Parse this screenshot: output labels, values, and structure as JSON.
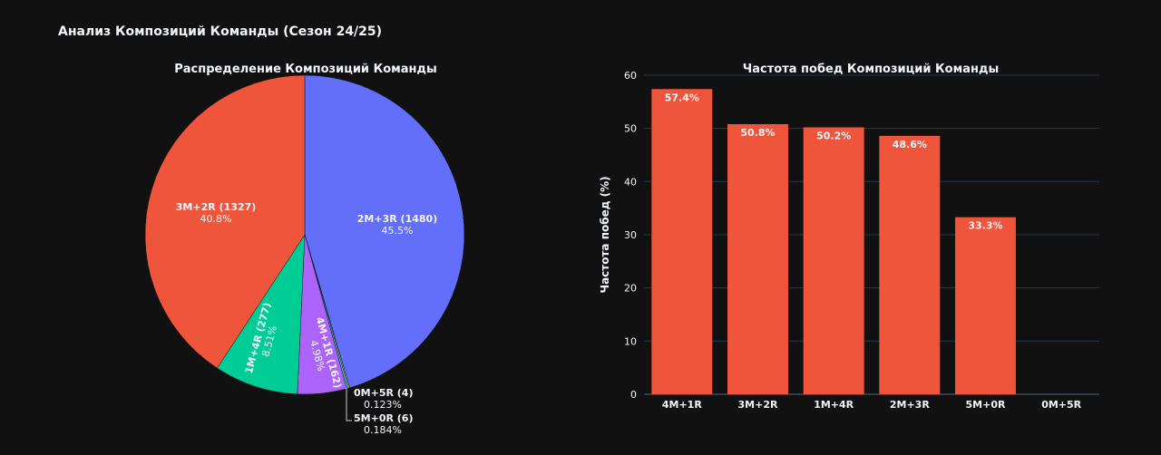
{
  "title": "Анализ Композиций Команды (Сезон 24/25)",
  "chart_data": [
    {
      "type": "pie",
      "title": "Распределение Композиций Команды",
      "slices": [
        {
          "label": "2M+3R",
          "count": 1480,
          "percent": "45.5%",
          "color": "#636efa"
        },
        {
          "label": "0M+5R",
          "count": 4,
          "percent": "0.123%",
          "color": "#FFA15A"
        },
        {
          "label": "5M+0R",
          "count": 6,
          "percent": "0.184%",
          "color": "#19d3f3"
        },
        {
          "label": "4M+1R",
          "count": 162,
          "percent": "4.98%",
          "color": "#ab63fa"
        },
        {
          "label": "1M+4R",
          "count": 277,
          "percent": "8.51%",
          "color": "#00cc96"
        },
        {
          "label": "3M+2R",
          "count": 1327,
          "percent": "40.8%",
          "color": "#EF553B"
        }
      ]
    },
    {
      "type": "bar",
      "title": "Частота побед Композиций Команды",
      "xlabel": "",
      "ylabel": "Частота побед (%)",
      "ylim": [
        0,
        60
      ],
      "yticks": [
        0,
        10,
        20,
        30,
        40,
        50,
        60
      ],
      "categories": [
        "4M+1R",
        "3M+2R",
        "1M+4R",
        "2M+3R",
        "5M+0R",
        "0M+5R"
      ],
      "values": [
        57.4,
        50.8,
        50.2,
        48.6,
        33.3,
        0
      ],
      "labels": [
        "57.4%",
        "50.8%",
        "50.2%",
        "48.6%",
        "33.3%",
        ""
      ],
      "color": "#EF553B",
      "grid": true
    }
  ]
}
